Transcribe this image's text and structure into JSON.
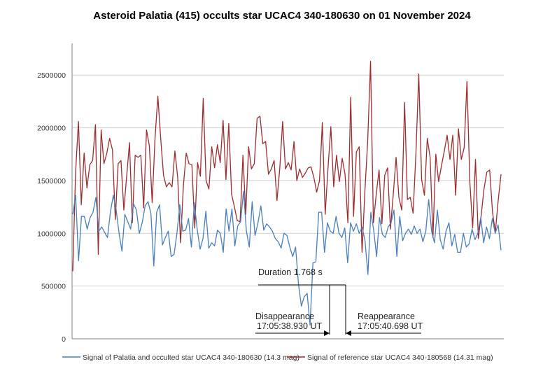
{
  "chart_data": {
    "type": "line",
    "title": "Asteroid Palatia (415) occults star UCAC4 340-180630 on 01 November 2024",
    "xlabel": "",
    "ylabel": "",
    "ylim": [
      0,
      2800000
    ],
    "yticks": [
      0,
      500000,
      1000000,
      1500000,
      2000000,
      2500000
    ],
    "ytick_labels": [
      "0",
      "500000",
      "1000000",
      "1500000",
      "2000000",
      "2500000"
    ],
    "grid": true,
    "legend_position": "bottom",
    "series": [
      {
        "name": "Signal of Palatia and occulted star UCAC4 340-180630 (14.3 mag)",
        "color": "#4a7ebb",
        "values": [
          1180000,
          1360000,
          740000,
          1160000,
          1160000,
          1040000,
          1150000,
          1200000,
          1340000,
          1020000,
          1060000,
          1010000,
          960000,
          1200000,
          1360000,
          1220000,
          1000000,
          830000,
          1180000,
          1110000,
          1040000,
          1280000,
          1220000,
          1000000,
          1100000,
          1260000,
          1300000,
          1190000,
          690000,
          1200000,
          1270000,
          890000,
          960000,
          1020000,
          780000,
          800000,
          1000000,
          1270000,
          1020000,
          1030000,
          1140000,
          870000,
          1290000,
          1040000,
          850000,
          950000,
          1210000,
          860000,
          910000,
          880000,
          1030000,
          1000000,
          820000,
          1230000,
          1020000,
          1230000,
          880000,
          1070000,
          1110000,
          1400000,
          1020000,
          870000,
          1300000,
          980000,
          1100000,
          1260000,
          1030000,
          1090000,
          1060000,
          1020000,
          950000,
          920000,
          860000,
          1000000,
          980000,
          870000,
          780000,
          870000,
          520000,
          310000,
          400000,
          430000,
          130000,
          720000,
          730000,
          1200000,
          1200000,
          820000,
          1100000,
          1020000,
          1000000,
          1160000,
          1000000,
          960000,
          1050000,
          720000,
          1100000,
          1020000,
          1090000,
          1000000,
          1060000,
          930000,
          610000,
          1200000,
          1030000,
          780000,
          1150000,
          990000,
          960000,
          1060000,
          1100000,
          1220000,
          780000,
          1160000,
          930000,
          1000000,
          1040000,
          990000,
          1070000,
          1000000,
          1040000,
          920000,
          1020000,
          1320000,
          1020000,
          910000,
          1220000,
          940000,
          850000,
          1020000,
          1100000,
          880000,
          990000,
          820000,
          820000,
          1000000,
          870000,
          900000,
          1040000,
          940000,
          1000000,
          1150000,
          910000,
          1060000,
          950000,
          1140000,
          1000000,
          1080000,
          840000
        ]
      },
      {
        "name": "Signal of reference star UCAC4 340-180568 (14.31 mag)",
        "color": "#9b2d30",
        "values": [
          640000,
          1580000,
          2060000,
          1270000,
          1760000,
          1430000,
          1650000,
          1690000,
          2030000,
          800000,
          1980000,
          1660000,
          1760000,
          1900000,
          1790000,
          1130000,
          1660000,
          1690000,
          1220000,
          1540000,
          1860000,
          1100000,
          1740000,
          1720000,
          1740000,
          1240000,
          1980000,
          1830000,
          1290000,
          1900000,
          2300000,
          1900000,
          1550000,
          1440000,
          1480000,
          1440000,
          1780000,
          1530000,
          910000,
          1450000,
          1760000,
          1660000,
          1650000,
          1050000,
          1670000,
          1540000,
          2280000,
          1500000,
          1420000,
          1820000,
          1620000,
          1840000,
          1670000,
          2070000,
          1510000,
          2040000,
          1370000,
          1250000,
          1120000,
          1110000,
          1740000,
          1180000,
          1820000,
          1610000,
          1660000,
          2090000,
          2110000,
          1850000,
          1870000,
          1560000,
          1610000,
          1690000,
          1310000,
          1620000,
          2060000,
          1610000,
          1670000,
          1600000,
          1870000,
          1500000,
          1610000,
          1530000,
          1570000,
          1620000,
          1630000,
          1530000,
          1390000,
          1500000,
          2050000,
          1180000,
          1620000,
          2010000,
          1440000,
          1740000,
          1490000,
          1710000,
          1560000,
          1100000,
          2290000,
          1160000,
          1770000,
          1820000,
          820000,
          1400000,
          1880000,
          2630000,
          1100000,
          1370000,
          1600000,
          1090000,
          1550000,
          1620000,
          1040000,
          1370000,
          1720000,
          1340000,
          1220000,
          2240000,
          1320000,
          1340000,
          1190000,
          1760000,
          2510000,
          1510000,
          1360000,
          1900000,
          1720000,
          960000,
          1750000,
          1490000,
          1640000,
          1780000,
          1930000,
          1700000,
          1930000,
          1360000,
          1990000,
          1700000,
          1810000,
          2440000,
          1490000,
          1050000,
          1700000,
          950000,
          1170000,
          1420000,
          1580000,
          1600000,
          1200000,
          1010000,
          1310000,
          1560000
        ]
      }
    ],
    "annotations": {
      "duration": "Duration 1.768 s",
      "disappearance_label": "Disappearance",
      "disappearance_time": "17:05:38.930 UT",
      "reappearance_label": "Reappearance",
      "reappearance_time": "17:05:40.698 UT"
    }
  }
}
